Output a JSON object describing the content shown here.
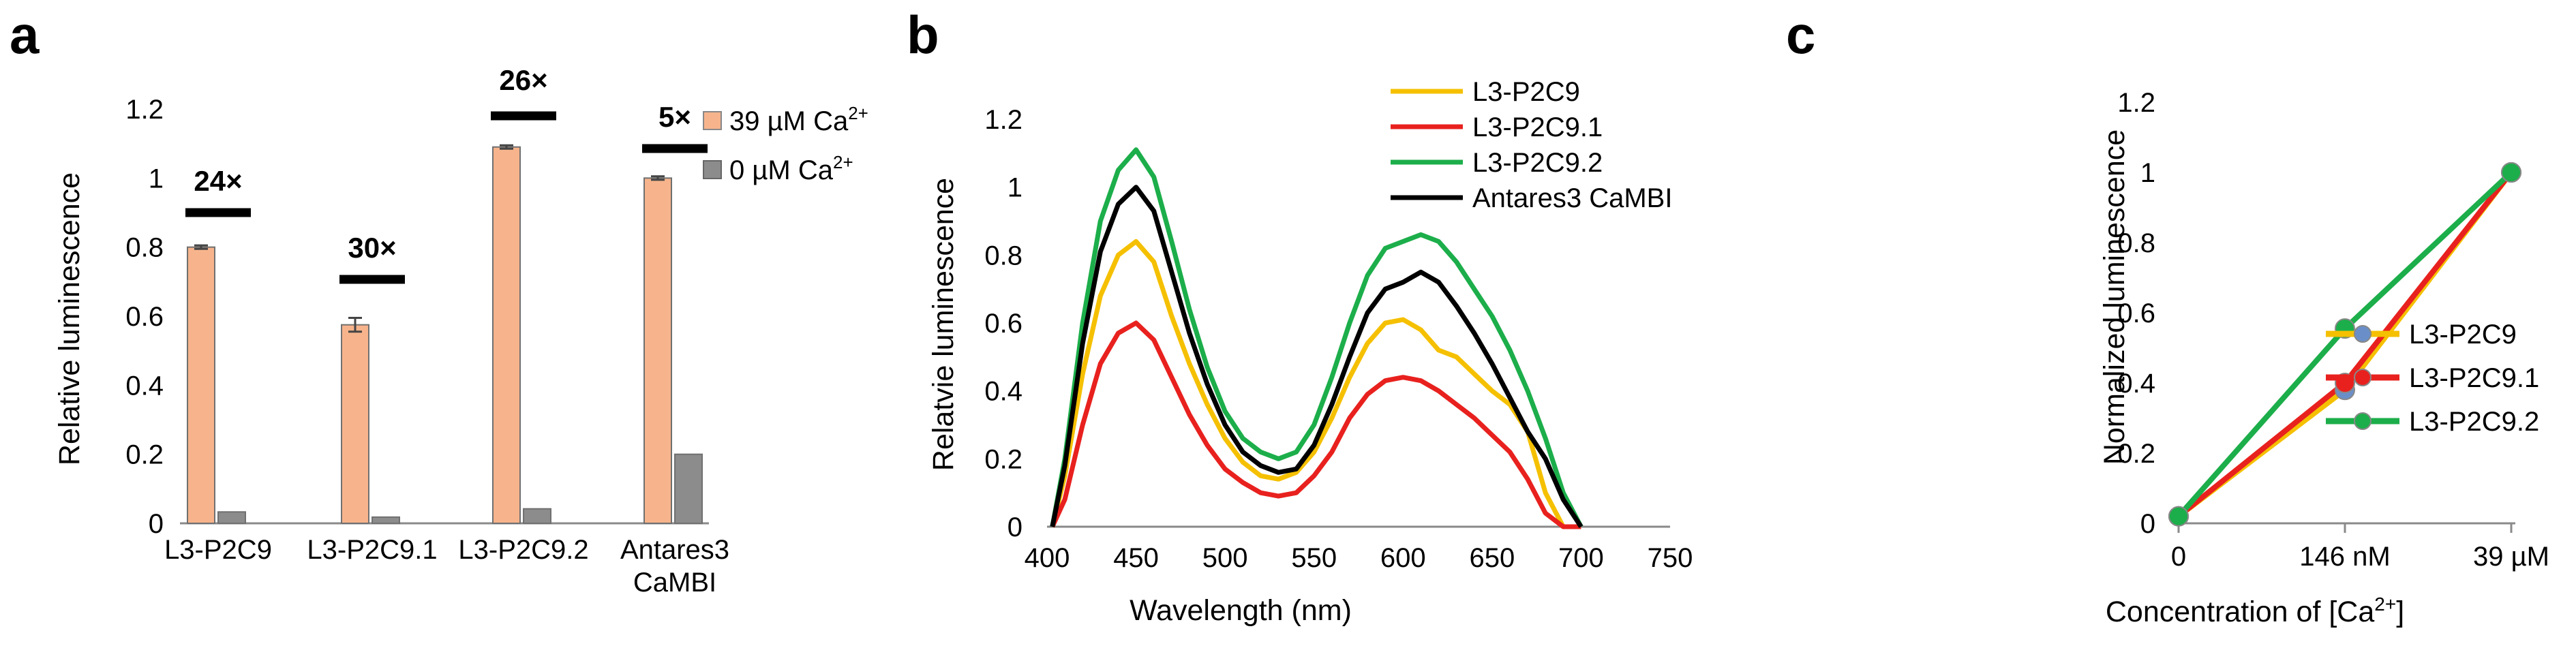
{
  "chart_data": [
    {
      "panel": "a",
      "type": "bar",
      "ylabel": "Relative luminescence",
      "ylim": [
        0,
        1.2
      ],
      "yticks": [
        "0",
        "0.2",
        "0.4",
        "0.6",
        "0.8",
        "1",
        "1.2"
      ],
      "categories": [
        {
          "line1": "L3-P2C9",
          "line2": ""
        },
        {
          "line1": "L3-P2C9.1",
          "line2": ""
        },
        {
          "line1": "L3-P2C9.2",
          "line2": ""
        },
        {
          "line1": "Antares3",
          "line2": "CaMBI"
        }
      ],
      "series": [
        {
          "name": "39 µM Ca",
          "sup": "2+",
          "color": "#f7b48c",
          "values": [
            0.8,
            0.575,
            1.09,
            1.0
          ],
          "errors": [
            0.005,
            0.02,
            0.005,
            0.005
          ]
        },
        {
          "name": "0 µM Ca",
          "sup": "2+",
          "color": "#8c8c8c",
          "values": [
            0.033,
            0.018,
            0.042,
            0.2
          ],
          "errors": [
            0.0,
            0.0,
            0.0,
            0.0
          ]
        }
      ],
      "fold_changes": [
        "24×",
        "30×",
        "26×",
        "5×"
      ]
    },
    {
      "panel": "b",
      "type": "line",
      "xlabel": "Wavelength (nm)",
      "ylabel": "Relatvie luminescence",
      "xlim": [
        400,
        750
      ],
      "ylim": [
        0,
        1.2
      ],
      "xticks": [
        "400",
        "450",
        "500",
        "550",
        "600",
        "650",
        "700",
        "750"
      ],
      "yticks": [
        "0",
        "0.2",
        "0.4",
        "0.6",
        "0.8",
        "1",
        "1.2"
      ],
      "x": [
        403,
        410,
        420,
        430,
        440,
        450,
        460,
        470,
        480,
        490,
        500,
        510,
        520,
        530,
        540,
        550,
        560,
        570,
        580,
        590,
        600,
        610,
        620,
        630,
        640,
        650,
        660,
        670,
        680,
        690,
        700
      ],
      "series": [
        {
          "name": "L3-P2C9",
          "color": "#f5c000",
          "values": [
            0.0,
            0.15,
            0.45,
            0.68,
            0.8,
            0.84,
            0.78,
            0.62,
            0.48,
            0.36,
            0.26,
            0.19,
            0.15,
            0.14,
            0.16,
            0.22,
            0.32,
            0.44,
            0.54,
            0.6,
            0.61,
            0.58,
            0.52,
            0.5,
            0.45,
            0.4,
            0.36,
            0.28,
            0.1,
            0.0,
            0.0
          ]
        },
        {
          "name": "L3-P2C9.1",
          "color": "#e8211e",
          "values": [
            0.0,
            0.08,
            0.3,
            0.48,
            0.57,
            0.6,
            0.55,
            0.44,
            0.33,
            0.24,
            0.17,
            0.13,
            0.1,
            0.09,
            0.1,
            0.15,
            0.22,
            0.32,
            0.39,
            0.43,
            0.44,
            0.43,
            0.4,
            0.36,
            0.32,
            0.27,
            0.22,
            0.14,
            0.04,
            0.0,
            0.0
          ]
        },
        {
          "name": "L3-P2C9.2",
          "color": "#1cae4a",
          "values": [
            0.0,
            0.2,
            0.6,
            0.9,
            1.05,
            1.11,
            1.03,
            0.84,
            0.64,
            0.47,
            0.34,
            0.26,
            0.22,
            0.2,
            0.22,
            0.3,
            0.44,
            0.6,
            0.74,
            0.82,
            0.84,
            0.86,
            0.84,
            0.78,
            0.7,
            0.62,
            0.52,
            0.4,
            0.26,
            0.1,
            0.0
          ]
        },
        {
          "name": "Antares3 CaMBI",
          "color": "#000000",
          "values": [
            0.0,
            0.18,
            0.54,
            0.81,
            0.95,
            1.0,
            0.93,
            0.75,
            0.57,
            0.42,
            0.3,
            0.22,
            0.18,
            0.16,
            0.17,
            0.24,
            0.36,
            0.5,
            0.63,
            0.7,
            0.72,
            0.75,
            0.72,
            0.65,
            0.57,
            0.48,
            0.38,
            0.28,
            0.2,
            0.08,
            0.0
          ]
        }
      ]
    },
    {
      "panel": "c",
      "type": "line",
      "xlabel": "Concentration of [Ca",
      "xlabel_sup": "2+",
      "xlabel_end": "]",
      "ylabel": "Normalized luminescence",
      "ylim": [
        0,
        1.2
      ],
      "yticks": [
        "0",
        "0.2",
        "0.4",
        "0.6",
        "0.8",
        "1",
        "1.2"
      ],
      "categories": [
        "0",
        "146 nM",
        "39 µM"
      ],
      "series": [
        {
          "name": "L3-P2C9",
          "color": "#f5c000",
          "marker": "#6a8fc8",
          "values": [
            0.02,
            0.38,
            1.0
          ]
        },
        {
          "name": "L3-P2C9.1",
          "color": "#e8211e",
          "marker": "#e8211e",
          "values": [
            0.02,
            0.4,
            1.0
          ]
        },
        {
          "name": "L3-P2C9.2",
          "color": "#1cae4a",
          "marker": "#1cae4a",
          "values": [
            0.02,
            0.555,
            1.0
          ]
        }
      ]
    }
  ]
}
